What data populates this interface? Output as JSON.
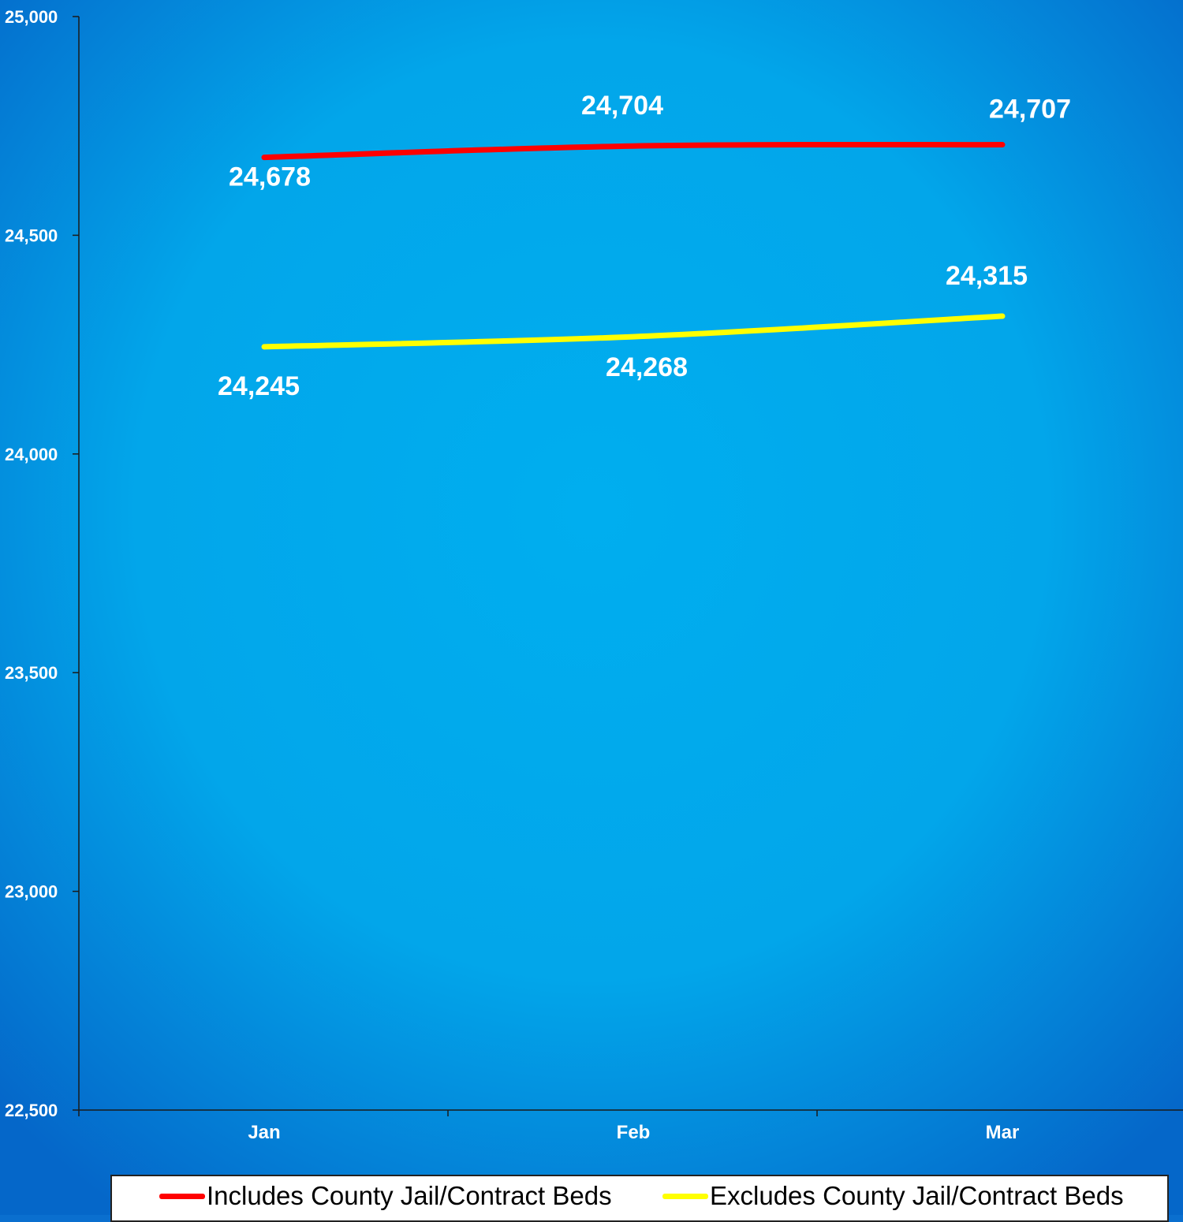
{
  "chart_data": {
    "type": "line",
    "title": "",
    "xlabel": "",
    "ylabel": "",
    "categories": [
      "Jan",
      "Feb",
      "Mar"
    ],
    "ylim": [
      22500,
      25000
    ],
    "yticks": [
      22500,
      23000,
      23500,
      24000,
      24500,
      25000
    ],
    "ytick_labels": [
      "22,500",
      "23,000",
      "23,500",
      "24,000",
      "24,500",
      "25,000"
    ],
    "grid": false,
    "legend_position": "bottom",
    "series": [
      {
        "name": "Includes County Jail/Contract Beds",
        "color": "#ff0000",
        "values": [
          24678,
          24704,
          24707
        ],
        "labels": [
          "24,678",
          "24,704",
          "24,707"
        ]
      },
      {
        "name": "Excludes County Jail/Contract Beds",
        "color": "#ffff00",
        "values": [
          24245,
          24268,
          24315
        ],
        "labels": [
          "24,245",
          "24,268",
          "24,315"
        ]
      }
    ]
  },
  "colors": {
    "background_center": "#00aeef",
    "background_edge": "#0567c9",
    "axis": "#1a1a1a",
    "label_text": "#ffffff",
    "legend_bg": "#ffffff"
  }
}
